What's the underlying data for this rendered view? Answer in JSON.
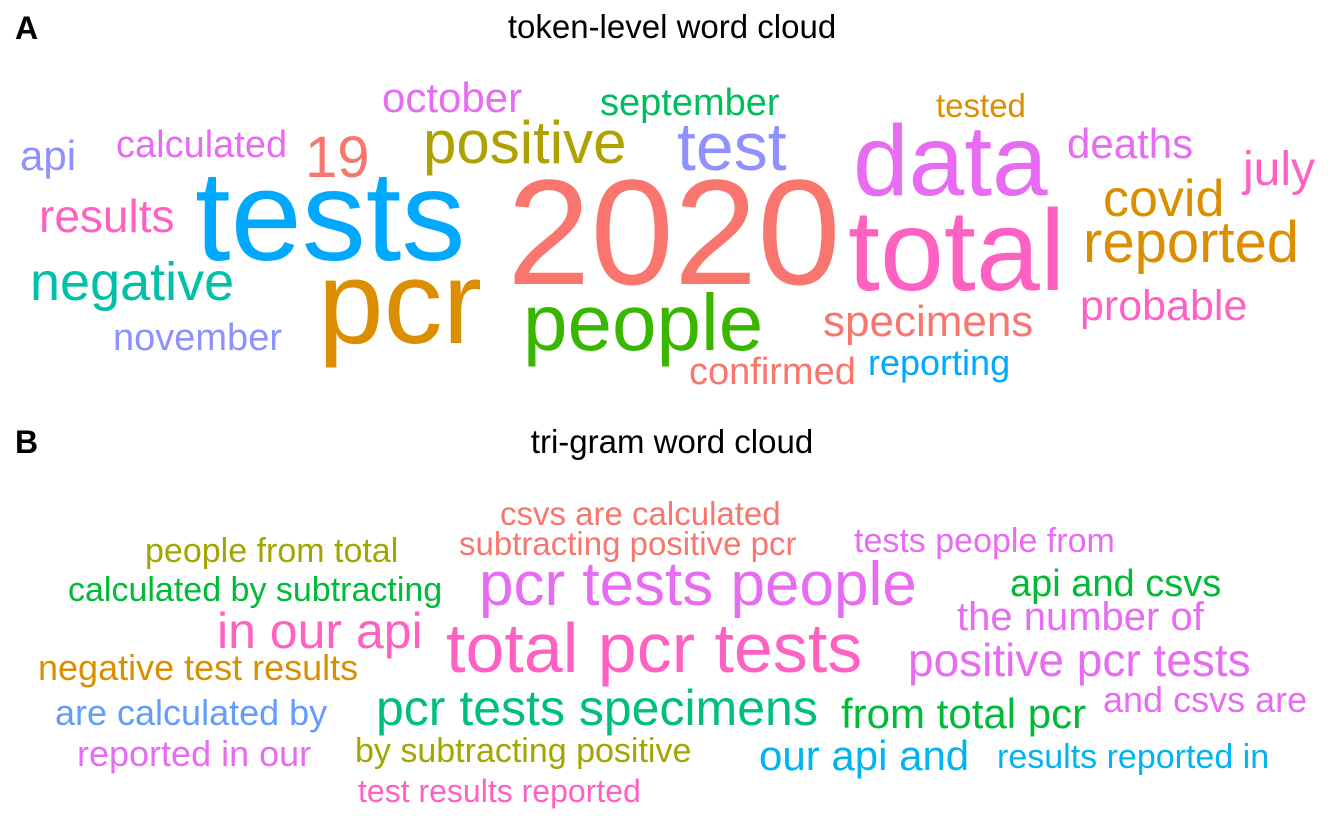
{
  "chart_data": [
    {
      "type": "wordcloud",
      "panel": "A",
      "title": "token-level word cloud",
      "words": [
        {
          "text": "2020",
          "color": "#F8766D"
        },
        {
          "text": "tests",
          "color": "#00A9FF"
        },
        {
          "text": "data",
          "color": "#E76BF3"
        },
        {
          "text": "total",
          "color": "#FF61C3"
        },
        {
          "text": "pcr",
          "color": "#DB8E00"
        },
        {
          "text": "people",
          "color": "#39B600"
        },
        {
          "text": "test",
          "color": "#8F91FF"
        },
        {
          "text": "positive",
          "color": "#AEA200"
        },
        {
          "text": "reported",
          "color": "#DB8E00"
        },
        {
          "text": "negative",
          "color": "#00C1A7"
        },
        {
          "text": "covid",
          "color": "#DB8E00"
        },
        {
          "text": "19",
          "color": "#F8766D"
        },
        {
          "text": "july",
          "color": "#FF61C3"
        },
        {
          "text": "results",
          "color": "#FF61C3"
        },
        {
          "text": "specimens",
          "color": "#F8766D"
        },
        {
          "text": "probable",
          "color": "#FF61C3"
        },
        {
          "text": "deaths",
          "color": "#E76BF3"
        },
        {
          "text": "october",
          "color": "#E76BF3"
        },
        {
          "text": "september",
          "color": "#00BD5C"
        },
        {
          "text": "calculated",
          "color": "#E76BF3"
        },
        {
          "text": "api",
          "color": "#8F91FF"
        },
        {
          "text": "november",
          "color": "#8F91FF"
        },
        {
          "text": "confirmed",
          "color": "#F8766D"
        },
        {
          "text": "reporting",
          "color": "#00A9FF"
        },
        {
          "text": "tested",
          "color": "#DB8E00"
        }
      ]
    },
    {
      "type": "wordcloud",
      "panel": "B",
      "title": "tri-gram word cloud",
      "words": [
        {
          "text": "total pcr tests",
          "color": "#FF61C3"
        },
        {
          "text": "pcr tests people",
          "color": "#E76BF3"
        },
        {
          "text": "pcr tests specimens",
          "color": "#00BF7D"
        },
        {
          "text": "positive pcr tests",
          "color": "#E76BF3"
        },
        {
          "text": "in our api",
          "color": "#FF61C3"
        },
        {
          "text": "our api and",
          "color": "#00B4EF"
        },
        {
          "text": "from total pcr",
          "color": "#00BA38"
        },
        {
          "text": "api and csvs",
          "color": "#00BA38"
        },
        {
          "text": "the number of",
          "color": "#E76BF3"
        },
        {
          "text": "negative test results",
          "color": "#D89000"
        },
        {
          "text": "are calculated by",
          "color": "#619CFF"
        },
        {
          "text": "reported in our",
          "color": "#E76BF3"
        },
        {
          "text": "by subtracting positive",
          "color": "#A3A500"
        },
        {
          "text": "and csvs are",
          "color": "#E76BF3"
        },
        {
          "text": "results reported in",
          "color": "#00B4EF"
        },
        {
          "text": "calculated by subtracting",
          "color": "#00BA38"
        },
        {
          "text": "people from total",
          "color": "#A3A500"
        },
        {
          "text": "csvs are calculated",
          "color": "#F8766D"
        },
        {
          "text": "subtracting positive pcr",
          "color": "#F8766D"
        },
        {
          "text": "tests people from",
          "color": "#E76BF3"
        },
        {
          "text": "test results reported",
          "color": "#FF61C3"
        }
      ]
    }
  ]
}
